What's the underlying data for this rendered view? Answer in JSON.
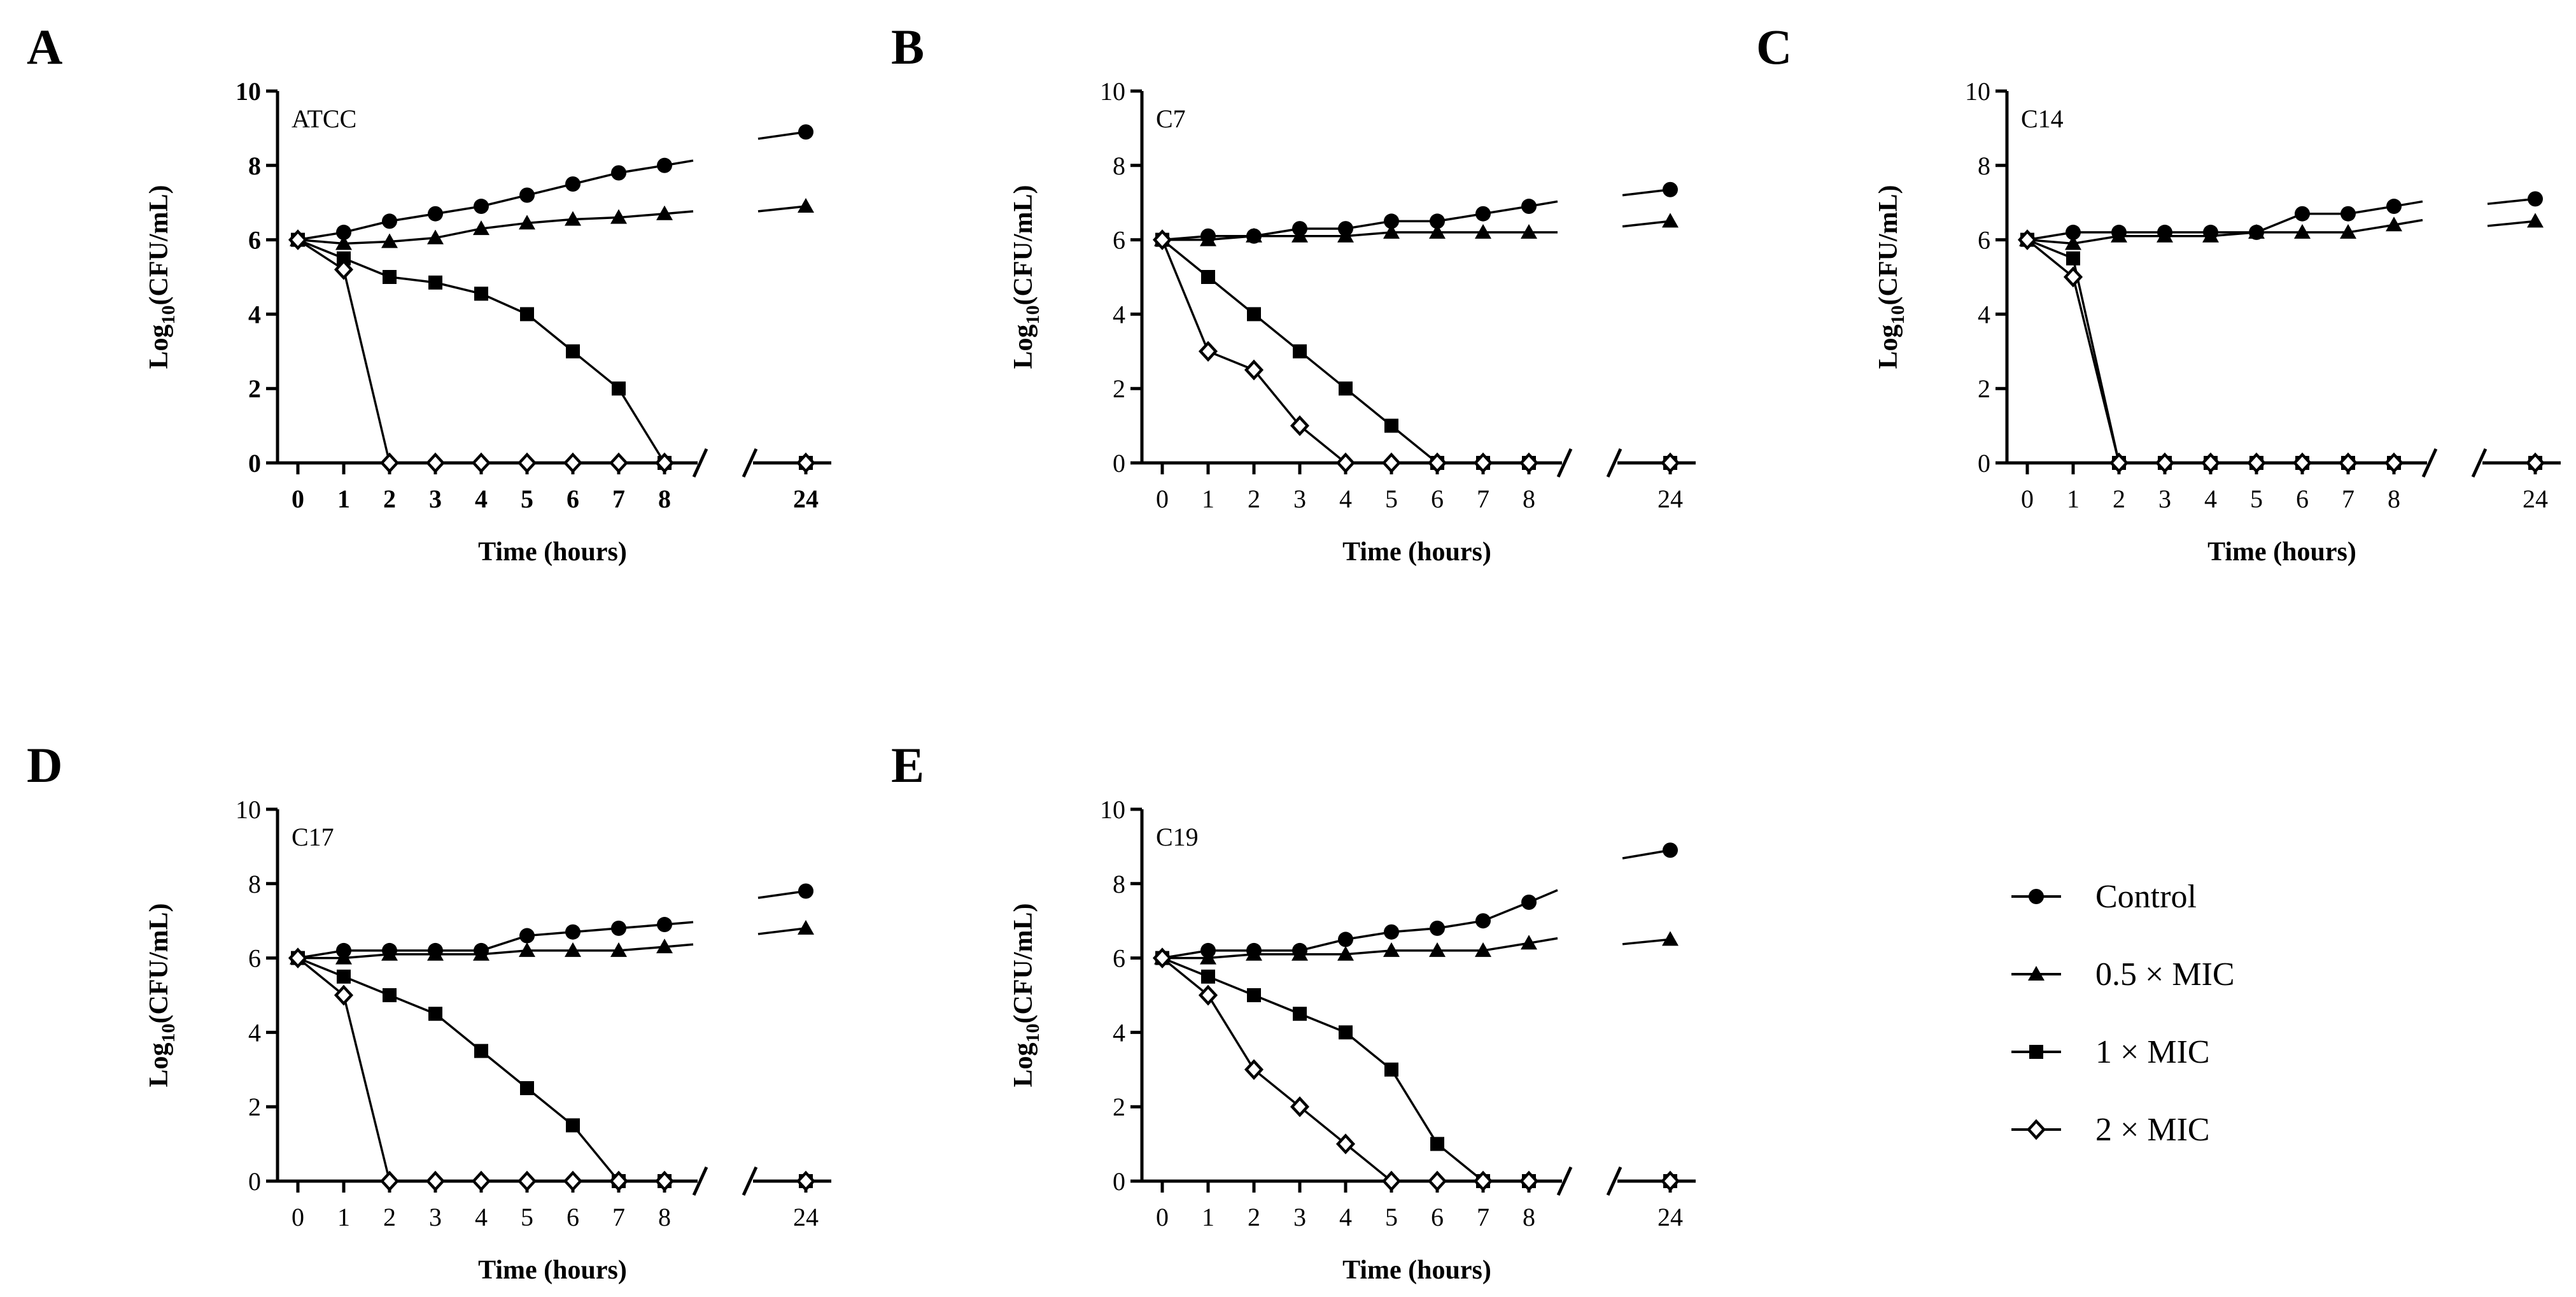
{
  "legend": {
    "placement": "right",
    "entries": [
      {
        "label": "Control",
        "marker": "circle"
      },
      {
        "label": "0.5 × MIC",
        "marker": "triangle"
      },
      {
        "label": "1 × MIC",
        "marker": "square"
      },
      {
        "label": "2 × MIC",
        "marker": "diamond-open"
      }
    ]
  },
  "chart_data": [
    {
      "type": "line",
      "panel_letter": "A",
      "annotation": "ATCC",
      "title": "",
      "xlabel": "Time (hours)",
      "ylabel": "Log10(CFU/mL)",
      "ylabel_main": "Log",
      "ylabel_sub": "10",
      "ylabel_rest": "(CFU/mL)",
      "x": [
        0,
        1,
        2,
        3,
        4,
        5,
        6,
        7,
        8,
        24
      ],
      "x_tick_labels": [
        "0",
        "1",
        "2",
        "3",
        "4",
        "5",
        "6",
        "7",
        "8",
        "24"
      ],
      "bold_ticks": true,
      "ylim": [
        0,
        10
      ],
      "y_ticks": [
        0,
        2,
        4,
        6,
        8,
        10
      ],
      "broken_x_axis": true,
      "grid": false,
      "series": [
        {
          "marker": "circle",
          "values": [
            6,
            6.2,
            6.5,
            6.7,
            6.9,
            7.2,
            7.5,
            7.8,
            8.0,
            8.9
          ]
        },
        {
          "marker": "triangle",
          "values": [
            6,
            5.9,
            5.95,
            6.05,
            6.3,
            6.45,
            6.55,
            6.6,
            6.7,
            6.9
          ]
        },
        {
          "marker": "square",
          "values": [
            6,
            5.5,
            5.0,
            4.85,
            4.55,
            4.0,
            3.0,
            2.0,
            0,
            0
          ]
        },
        {
          "marker": "diamond-open",
          "values": [
            6,
            5.2,
            0,
            0,
            0,
            0,
            0,
            0,
            0,
            0
          ]
        }
      ]
    },
    {
      "type": "line",
      "panel_letter": "B",
      "annotation": "C7",
      "title": "",
      "xlabel": "Time (hours)",
      "ylabel": "Log10(CFU/mL)",
      "ylabel_main": "Log",
      "ylabel_sub": "10",
      "ylabel_rest": "(CFU/mL)",
      "x": [
        0,
        1,
        2,
        3,
        4,
        5,
        6,
        7,
        8,
        24
      ],
      "x_tick_labels": [
        "0",
        "1",
        "2",
        "3",
        "4",
        "5",
        "6",
        "7",
        "8",
        "24"
      ],
      "bold_ticks": false,
      "ylim": [
        0,
        10
      ],
      "y_ticks": [
        0,
        2,
        4,
        6,
        8,
        10
      ],
      "broken_x_axis": true,
      "grid": false,
      "series": [
        {
          "marker": "circle",
          "values": [
            6,
            6.1,
            6.1,
            6.3,
            6.3,
            6.5,
            6.5,
            6.7,
            6.9,
            7.35
          ]
        },
        {
          "marker": "triangle",
          "values": [
            6,
            6.0,
            6.1,
            6.1,
            6.1,
            6.2,
            6.2,
            6.2,
            6.2,
            6.5
          ]
        },
        {
          "marker": "square",
          "values": [
            6,
            5.0,
            4.0,
            3.0,
            2.0,
            1.0,
            0,
            0,
            0,
            0
          ]
        },
        {
          "marker": "diamond-open",
          "values": [
            6,
            3.0,
            2.5,
            1.0,
            0,
            0,
            0,
            0,
            0,
            0
          ]
        }
      ]
    },
    {
      "type": "line",
      "panel_letter": "C",
      "annotation": "C14",
      "title": "",
      "xlabel": "Time (hours)",
      "ylabel": "Log10(CFU/mL)",
      "ylabel_main": "Log",
      "ylabel_sub": "10",
      "ylabel_rest": "(CFU/mL)",
      "x": [
        0,
        1,
        2,
        3,
        4,
        5,
        6,
        7,
        8,
        24
      ],
      "x_tick_labels": [
        "0",
        "1",
        "2",
        "3",
        "4",
        "5",
        "6",
        "7",
        "8",
        "24"
      ],
      "bold_ticks": false,
      "ylim": [
        0,
        10
      ],
      "y_ticks": [
        0,
        2,
        4,
        6,
        8,
        10
      ],
      "broken_x_axis": true,
      "grid": false,
      "series": [
        {
          "marker": "circle",
          "values": [
            6,
            6.2,
            6.2,
            6.2,
            6.2,
            6.2,
            6.7,
            6.7,
            6.9,
            7.1
          ]
        },
        {
          "marker": "triangle",
          "values": [
            6,
            5.9,
            6.1,
            6.1,
            6.1,
            6.2,
            6.2,
            6.2,
            6.4,
            6.5
          ]
        },
        {
          "marker": "square",
          "values": [
            6,
            5.5,
            0,
            0,
            0,
            0,
            0,
            0,
            0,
            0
          ]
        },
        {
          "marker": "diamond-open",
          "values": [
            6,
            5.0,
            0,
            0,
            0,
            0,
            0,
            0,
            0,
            0
          ]
        }
      ]
    },
    {
      "type": "line",
      "panel_letter": "D",
      "annotation": "C17",
      "title": "",
      "xlabel": "Time (hours)",
      "ylabel": "Log10(CFU/mL)",
      "ylabel_main": "Log",
      "ylabel_sub": "10",
      "ylabel_rest": "(CFU/mL)",
      "x": [
        0,
        1,
        2,
        3,
        4,
        5,
        6,
        7,
        8,
        24
      ],
      "x_tick_labels": [
        "0",
        "1",
        "2",
        "3",
        "4",
        "5",
        "6",
        "7",
        "8",
        "24"
      ],
      "bold_ticks": false,
      "ylim": [
        0,
        10
      ],
      "y_ticks": [
        0,
        2,
        4,
        6,
        8,
        10
      ],
      "broken_x_axis": true,
      "grid": false,
      "series": [
        {
          "marker": "circle",
          "values": [
            6,
            6.2,
            6.2,
            6.2,
            6.2,
            6.6,
            6.7,
            6.8,
            6.9,
            7.8
          ]
        },
        {
          "marker": "triangle",
          "values": [
            6,
            6.0,
            6.1,
            6.1,
            6.1,
            6.2,
            6.2,
            6.2,
            6.3,
            6.8
          ]
        },
        {
          "marker": "square",
          "values": [
            6,
            5.5,
            5.0,
            4.5,
            3.5,
            2.5,
            1.5,
            0,
            0,
            0
          ]
        },
        {
          "marker": "diamond-open",
          "values": [
            6,
            5.0,
            0,
            0,
            0,
            0,
            0,
            0,
            0,
            0
          ]
        }
      ]
    },
    {
      "type": "line",
      "panel_letter": "E",
      "annotation": "C19",
      "title": "",
      "xlabel": "Time (hours)",
      "ylabel": "Log10(CFU/mL)",
      "ylabel_main": "Log",
      "ylabel_sub": "10",
      "ylabel_rest": "(CFU/mL)",
      "x": [
        0,
        1,
        2,
        3,
        4,
        5,
        6,
        7,
        8,
        24
      ],
      "x_tick_labels": [
        "0",
        "1",
        "2",
        "3",
        "4",
        "5",
        "6",
        "7",
        "8",
        "24"
      ],
      "bold_ticks": false,
      "ylim": [
        0,
        10
      ],
      "y_ticks": [
        0,
        2,
        4,
        6,
        8,
        10
      ],
      "broken_x_axis": true,
      "grid": false,
      "series": [
        {
          "marker": "circle",
          "values": [
            6,
            6.2,
            6.2,
            6.2,
            6.5,
            6.7,
            6.8,
            7.0,
            7.5,
            8.9
          ]
        },
        {
          "marker": "triangle",
          "values": [
            6,
            6.0,
            6.1,
            6.1,
            6.1,
            6.2,
            6.2,
            6.2,
            6.4,
            6.5
          ]
        },
        {
          "marker": "square",
          "values": [
            6,
            5.5,
            5.0,
            4.5,
            4.0,
            3.0,
            1.0,
            0,
            0,
            0
          ]
        },
        {
          "marker": "diamond-open",
          "values": [
            6,
            5.0,
            3.0,
            2.0,
            1.0,
            0,
            0,
            0,
            0,
            0
          ]
        }
      ]
    }
  ]
}
